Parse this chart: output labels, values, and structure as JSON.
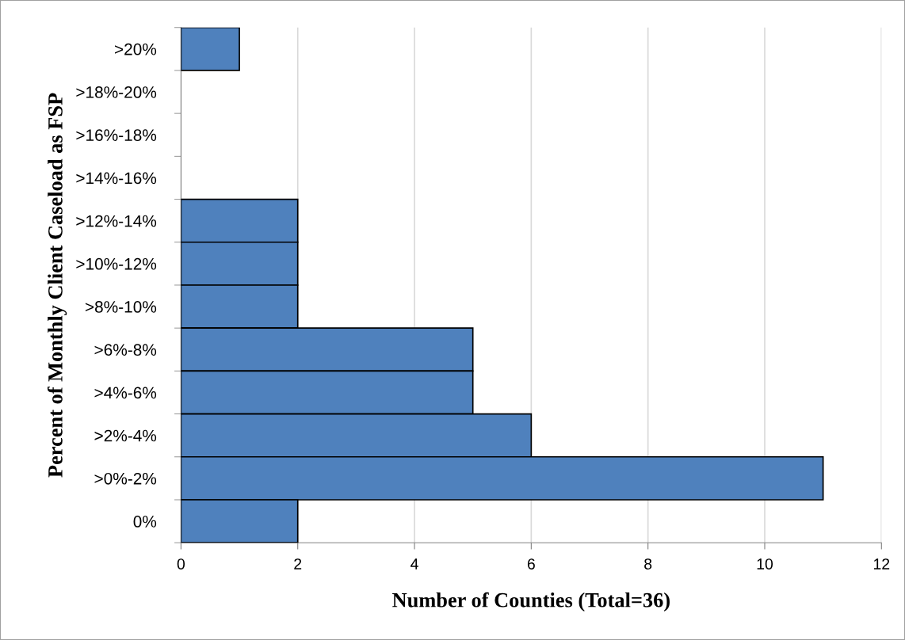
{
  "chart_data": {
    "type": "bar",
    "orientation": "horizontal",
    "xlabel": "Number of Counties (Total=36)",
    "ylabel": "Percent of Monthly Client Caseload as FSP",
    "categories": [
      ">20%",
      ">18%-20%",
      ">16%-18%",
      ">14%-16%",
      ">12%-14%",
      ">10%-12%",
      ">8%-10%",
      ">6%-8%",
      ">4%-6%",
      ">2%-4%",
      ">0%-2%",
      "0%"
    ],
    "values": [
      1,
      0,
      0,
      0,
      2,
      2,
      2,
      5,
      5,
      6,
      11,
      2
    ],
    "color": "#4f81bd",
    "xlim": [
      0,
      12
    ],
    "xticks": [
      0,
      2,
      4,
      6,
      8,
      10,
      12
    ],
    "grid": "x"
  }
}
